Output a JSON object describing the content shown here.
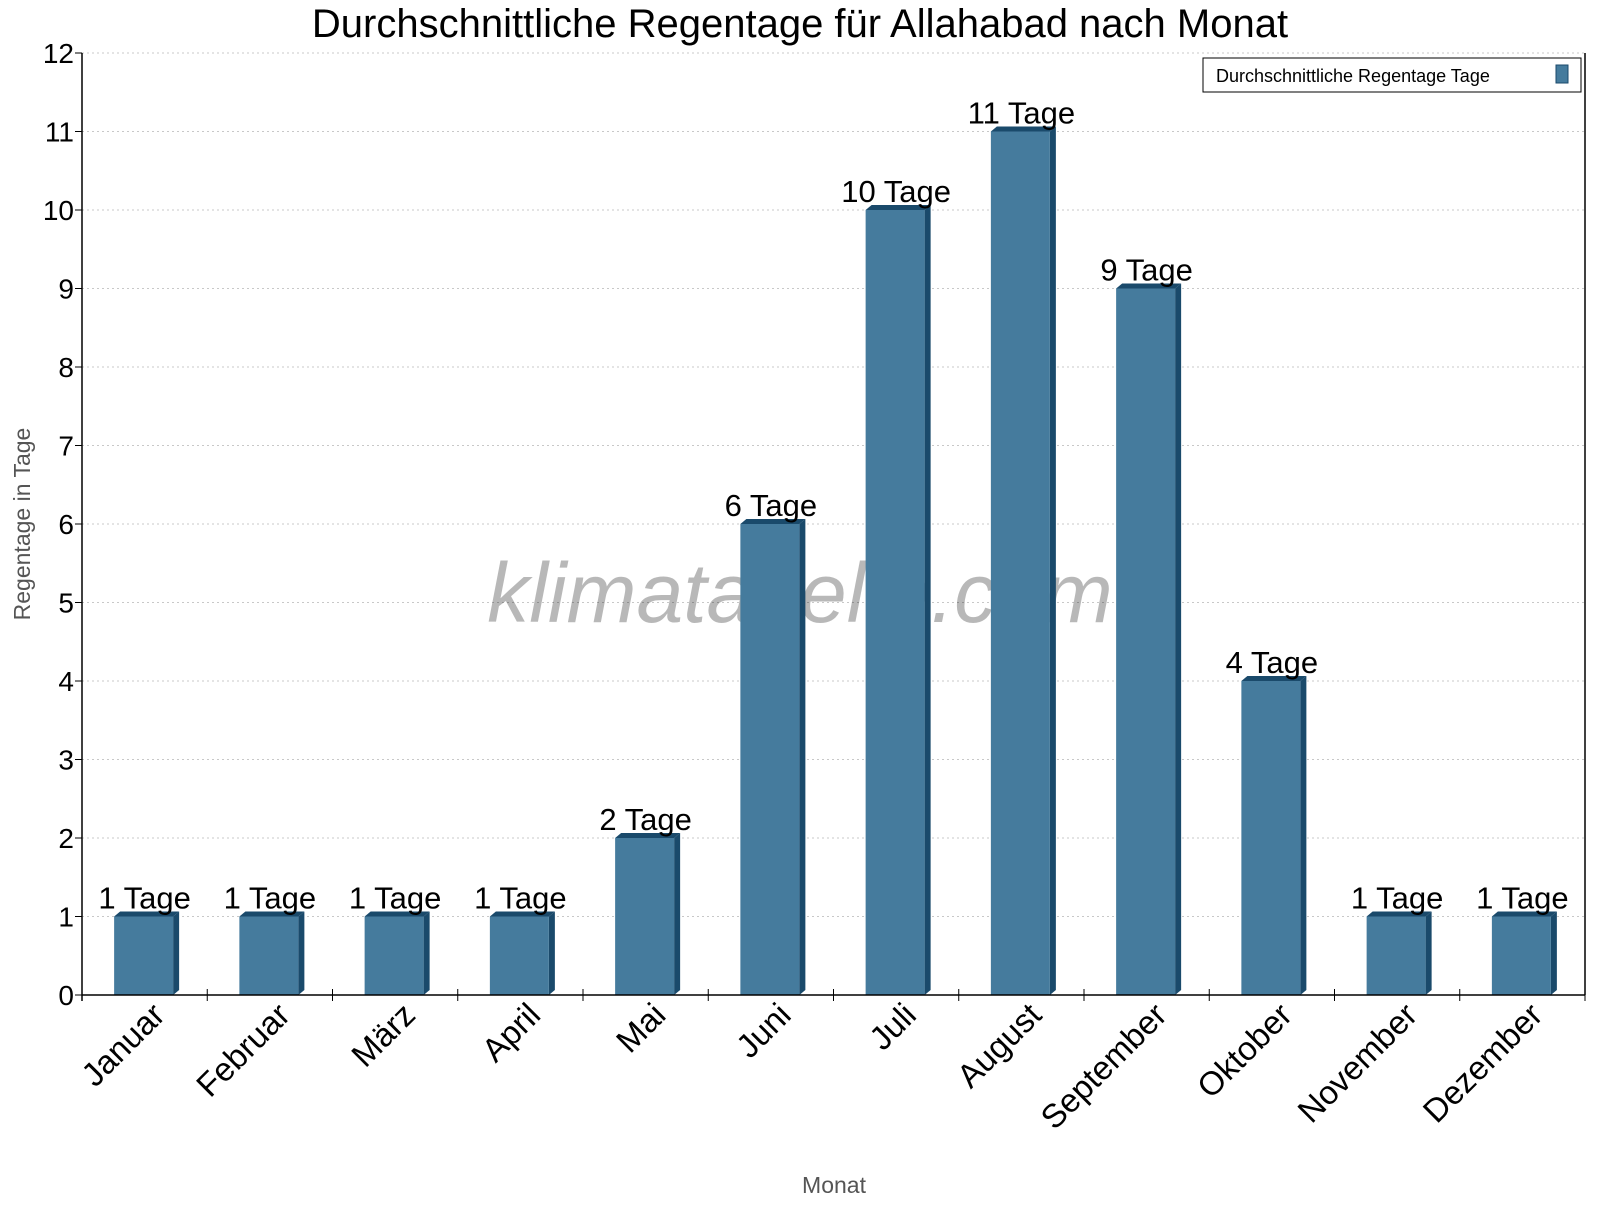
{
  "chart_data": {
    "type": "bar",
    "title": "Durchschnittliche Regentage für Allahabad nach Monat",
    "xlabel": "Monat",
    "ylabel": "Regentage in Tage",
    "categories": [
      "Januar",
      "Februar",
      "März",
      "April",
      "Mai",
      "Juni",
      "Juli",
      "August",
      "September",
      "Oktober",
      "November",
      "Dezember"
    ],
    "series": [
      {
        "name": "Durchschnittliche Regentage Tage",
        "values": [
          1,
          1,
          1,
          1,
          2,
          6,
          10,
          11,
          9,
          4,
          1,
          1
        ]
      }
    ],
    "data_labels": [
      "1 Tage",
      "1 Tage",
      "1 Tage",
      "1 Tage",
      "2 Tage",
      "6 Tage",
      "10 Tage",
      "11 Tage",
      "9 Tage",
      "4 Tage",
      "1 Tage",
      "1 Tage"
    ],
    "ylim": [
      0,
      12
    ],
    "yticks": [
      0,
      1,
      2,
      3,
      4,
      5,
      6,
      7,
      8,
      9,
      10,
      11,
      12
    ],
    "grid": true,
    "legend_placement": "top-right",
    "watermark": "klimatabelle.com",
    "colors": {
      "bar": "#457b9d",
      "bar_side": "#1a4a6b",
      "grid": "#c8c8c8",
      "axis_label": "#555555"
    }
  }
}
